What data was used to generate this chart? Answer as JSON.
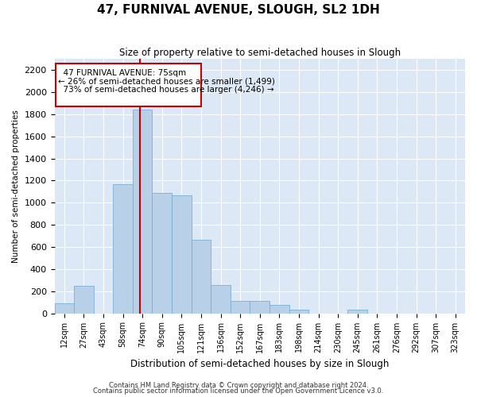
{
  "title": "47, FURNIVAL AVENUE, SLOUGH, SL2 1DH",
  "subtitle": "Size of property relative to semi-detached houses in Slough",
  "xlabel": "Distribution of semi-detached houses by size in Slough",
  "ylabel": "Number of semi-detached properties",
  "footnote1": "Contains HM Land Registry data © Crown copyright and database right 2024.",
  "footnote2": "Contains public sector information licensed under the Open Government Licence v3.0.",
  "annotation_line1": "  47 FURNIVAL AVENUE: 75sqm",
  "annotation_line2": "← 26% of semi-detached houses are smaller (1,499)",
  "annotation_line3": "  73% of semi-detached houses are larger (4,246) →",
  "bar_color": "#b8d0e8",
  "bar_edge_color": "#7aafd4",
  "highlight_line_color": "#cc0000",
  "annotation_box_color": "#cc0000",
  "background_color": "#dce8f5",
  "tick_labels": [
    "12sqm",
    "27sqm",
    "43sqm",
    "58sqm",
    "74sqm",
    "90sqm",
    "105sqm",
    "121sqm",
    "136sqm",
    "152sqm",
    "167sqm",
    "183sqm",
    "198sqm",
    "214sqm",
    "230sqm",
    "245sqm",
    "261sqm",
    "276sqm",
    "292sqm",
    "307sqm",
    "323sqm"
  ],
  "bar_heights": [
    90,
    245,
    0,
    1165,
    1840,
    1085,
    1070,
    665,
    255,
    115,
    115,
    75,
    30,
    0,
    0,
    35,
    0,
    0,
    0,
    0,
    0
  ],
  "ylim": [
    0,
    2300
  ],
  "yticks": [
    0,
    200,
    400,
    600,
    800,
    1000,
    1200,
    1400,
    1600,
    1800,
    2000,
    2200
  ],
  "n_bins": 21,
  "property_bin_index": 4,
  "property_line_x": 4.0
}
